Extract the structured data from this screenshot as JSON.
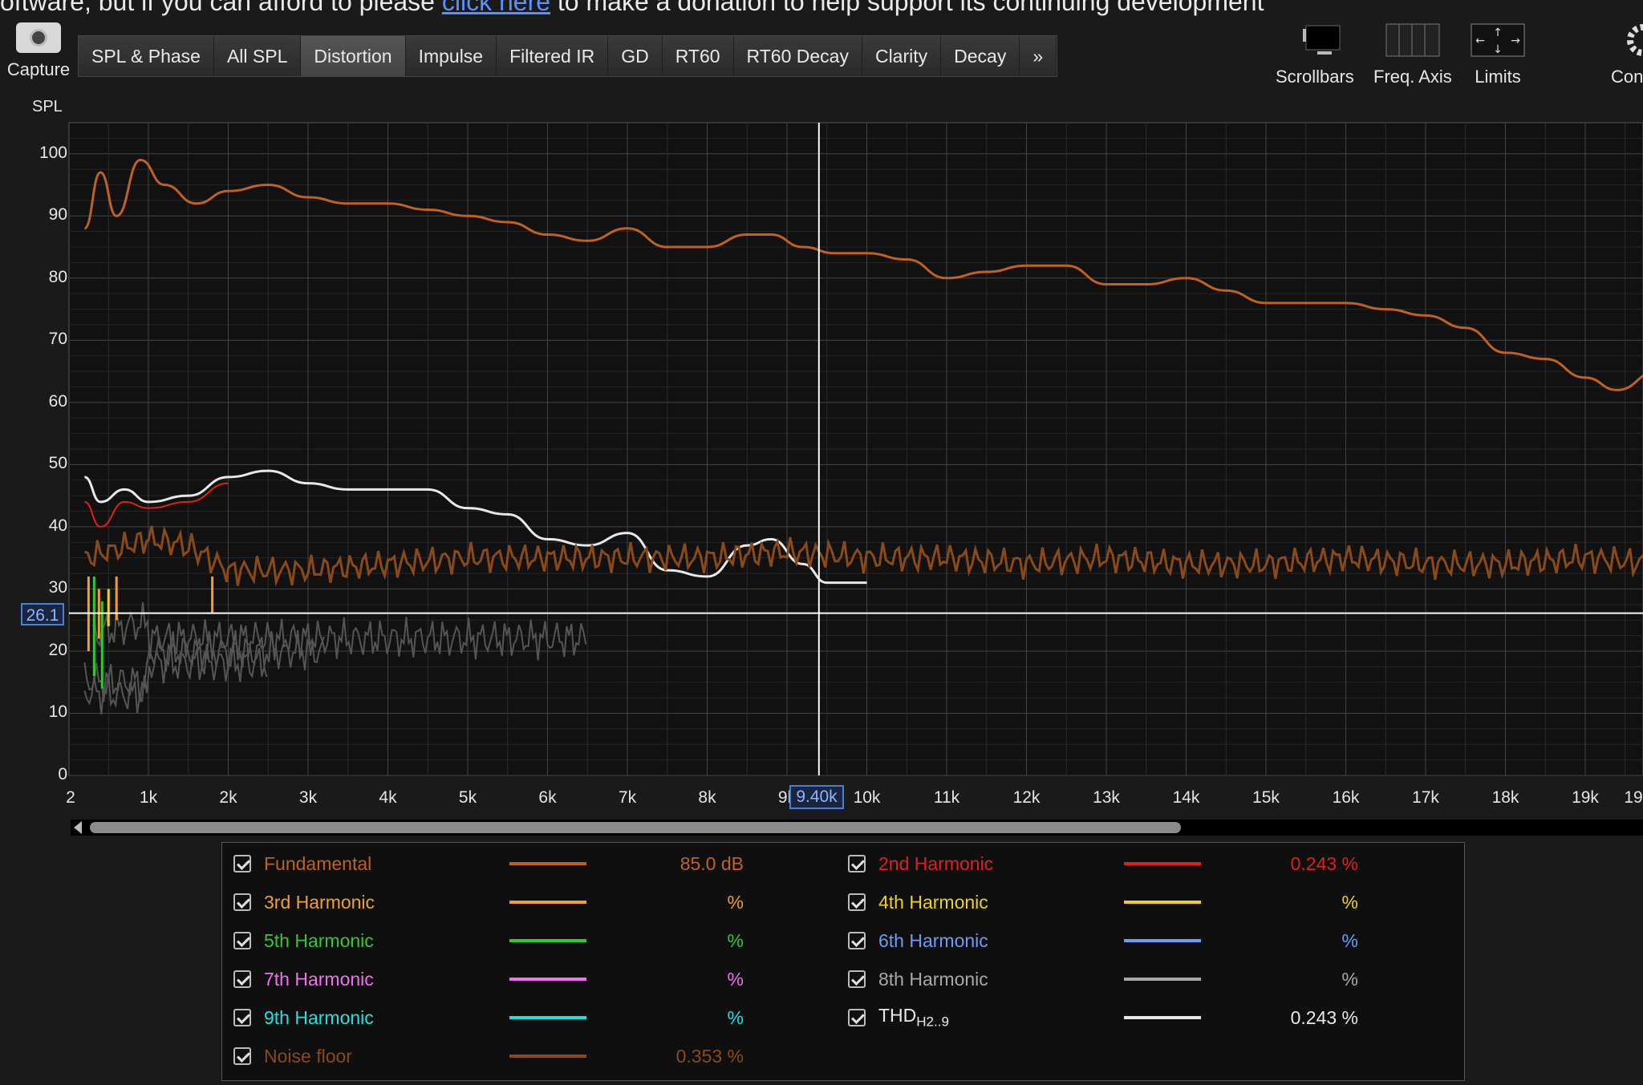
{
  "banner": {
    "pre": "oftware, but if you can afford to please ",
    "link": "click here",
    "post": " to make a donation to help support its continuing development"
  },
  "capture": {
    "label": "Capture"
  },
  "tabs": [
    {
      "label": "SPL & Phase",
      "active": false
    },
    {
      "label": "All SPL",
      "active": false
    },
    {
      "label": "Distortion",
      "active": true
    },
    {
      "label": "Impulse",
      "active": false
    },
    {
      "label": "Filtered IR",
      "active": false
    },
    {
      "label": "GD",
      "active": false
    },
    {
      "label": "RT60",
      "active": false
    },
    {
      "label": "RT60 Decay",
      "active": false
    },
    {
      "label": "Clarity",
      "active": false
    },
    {
      "label": "Decay",
      "active": false
    },
    {
      "label": "»",
      "active": false
    }
  ],
  "tools": {
    "scrollbars": "Scrollbars",
    "freq_axis": "Freq. Axis",
    "limits": "Limits",
    "con": "Con"
  },
  "colors": {
    "fundamental": "#c0611f",
    "h2": "#e0201d",
    "h3": "#f0a030",
    "h4": "#ecd21a",
    "h5": "#32c832",
    "h6": "#6c9cf5",
    "h7": "#f070f0",
    "h8": "#a8a8a8",
    "h9": "#22e0e0",
    "thd": "#e8e8e8",
    "noise": "#8a4a18",
    "noise_harm": "#555555",
    "grid": "#3a3a3a",
    "cursor": "#ffffff",
    "accent_box": "#4a7fd6"
  },
  "chart_data": {
    "type": "line",
    "ylabel": "SPL",
    "ylim": [
      0,
      105
    ],
    "xlim": [
      0.2,
      19.9
    ],
    "x_unit": "kHz",
    "yticks": [
      "100",
      "90",
      "80",
      "70",
      "60",
      "50",
      "40",
      "30",
      "20",
      "10",
      "0"
    ],
    "xticks": [
      "2",
      "1k",
      "2k",
      "3k",
      "4k",
      "5k",
      "6k",
      "7k",
      "8k",
      "9k",
      "10k",
      "11k",
      "12k",
      "13k",
      "14k",
      "15k",
      "16k",
      "17k",
      "18k",
      "19k",
      "19"
    ],
    "grid": true,
    "cursor": {
      "x": "9.40k",
      "y": "26.1"
    },
    "series": [
      {
        "name": "Fundamental",
        "x": [
          0.2,
          0.4,
          0.6,
          0.9,
          1.2,
          1.6,
          2.0,
          2.5,
          3.0,
          3.5,
          4.0,
          4.5,
          5.0,
          5.5,
          6.0,
          6.5,
          7.0,
          7.5,
          8.0,
          8.5,
          8.8,
          9.2,
          9.6,
          10.0,
          10.5,
          11.0,
          11.5,
          12.0,
          12.5,
          13.0,
          13.5,
          14.0,
          14.5,
          15.0,
          15.5,
          16.0,
          16.5,
          17.0,
          17.5,
          18.0,
          18.5,
          19.0,
          19.4,
          19.9
        ],
        "values": [
          88,
          97,
          90,
          99,
          95,
          92,
          94,
          95,
          93,
          92,
          92,
          91,
          90,
          89,
          87,
          86,
          88,
          85,
          85,
          87,
          87,
          85,
          84,
          84,
          83,
          80,
          81,
          82,
          82,
          79,
          79,
          80,
          78,
          76,
          76,
          76,
          75,
          74,
          72,
          68,
          67,
          64,
          62,
          65
        ]
      },
      {
        "name": "THD",
        "x": [
          0.2,
          0.4,
          0.7,
          1.0,
          1.5,
          2.0,
          2.5,
          3.0,
          3.5,
          4.0,
          4.5,
          5.0,
          5.5,
          6.0,
          6.5,
          7.0,
          7.5,
          8.0,
          8.5,
          8.8,
          9.2,
          9.5,
          10.0
        ],
        "values": [
          48,
          44,
          46,
          44,
          45,
          48,
          49,
          47,
          46,
          46,
          46,
          43,
          42,
          38,
          37,
          39,
          33,
          32,
          37,
          38,
          34,
          31,
          31
        ]
      },
      {
        "name": "Noise floor",
        "x": [
          0.2,
          0.5,
          1.0,
          1.5,
          2.0,
          3.0,
          4.0,
          5.0,
          6.0,
          7.0,
          8.0,
          9.0,
          10.0,
          11.0,
          12.0,
          13.0,
          14.0,
          15.0,
          16.0,
          17.0,
          18.0,
          19.0,
          19.9
        ],
        "values": [
          35,
          36,
          38,
          37,
          33,
          33,
          34,
          35,
          35,
          35,
          35,
          36,
          35,
          35,
          34,
          35,
          34,
          34,
          35,
          34,
          34,
          35,
          34
        ]
      }
    ]
  },
  "legend": {
    "left": [
      {
        "name": "Fundamental",
        "value": "85.0 dB",
        "color_key": "fundamental"
      },
      {
        "name": "3rd Harmonic",
        "value": "%",
        "color_key": "h3"
      },
      {
        "name": "5th Harmonic",
        "value": "%",
        "color_key": "h5"
      },
      {
        "name": "7th Harmonic",
        "value": "%",
        "color_key": "h7"
      },
      {
        "name": "9th Harmonic",
        "value": "%",
        "color_key": "h9"
      },
      {
        "name": "Noise floor",
        "value": "0.353 %",
        "color_key": "noise"
      }
    ],
    "right": [
      {
        "name": "2nd Harmonic",
        "value": "0.243 %",
        "color_key": "h2"
      },
      {
        "name": "4th Harmonic",
        "value": "%",
        "color_key": "h4"
      },
      {
        "name": "6th Harmonic",
        "value": "%",
        "color_key": "h6"
      },
      {
        "name": "8th Harmonic",
        "value": "%",
        "color_key": "h8"
      },
      {
        "name": "THD",
        "sub": "H2..9",
        "value": "0.243 %",
        "color_key": "thd"
      }
    ]
  }
}
